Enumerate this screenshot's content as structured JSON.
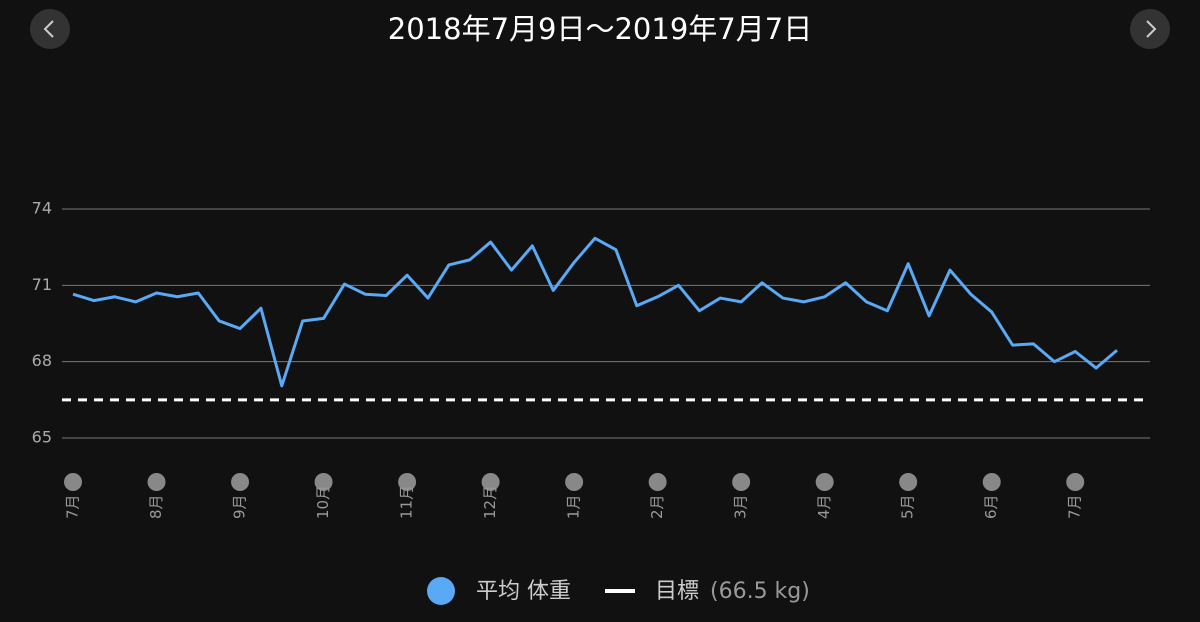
{
  "chart_data": {
    "type": "line",
    "title": "2018年7月9日～2019年7月7日",
    "categories": [
      "7月",
      null,
      null,
      null,
      "8月",
      null,
      null,
      null,
      "9月",
      null,
      null,
      null,
      "10月",
      null,
      null,
      null,
      "11月",
      null,
      null,
      null,
      "12月",
      null,
      null,
      null,
      "1月",
      null,
      null,
      null,
      "2月",
      null,
      null,
      null,
      "3月",
      null,
      null,
      null,
      "4月",
      null,
      null,
      null,
      "5月",
      null,
      null,
      null,
      "6月",
      null,
      null,
      null,
      "7月",
      null,
      null
    ],
    "series": [
      {
        "name": "平均 体重",
        "color": "#5aa9f5",
        "values": [
          70.65,
          70.4,
          70.55,
          70.35,
          70.7,
          70.55,
          70.7,
          69.6,
          69.3,
          70.1,
          67.05,
          69.6,
          69.7,
          71.05,
          70.65,
          70.6,
          71.4,
          70.5,
          71.8,
          72.0,
          72.7,
          71.6,
          72.55,
          70.8,
          71.9,
          72.85,
          72.4,
          70.2,
          70.55,
          71.0,
          70.0,
          70.5,
          70.35,
          71.1,
          70.5,
          70.35,
          70.55,
          71.1,
          70.35,
          70.0,
          71.85,
          69.8,
          71.6,
          70.65,
          69.95,
          68.65,
          68.7,
          68.0,
          68.4,
          67.75,
          68.45
        ]
      }
    ],
    "goal": {
      "name": "目標",
      "value": 66.5,
      "value_label": "(66.5 kg)",
      "color": "#ffffff"
    },
    "ylim": [
      65,
      74
    ],
    "yticks": [
      65,
      68,
      71,
      74
    ],
    "grid": true
  }
}
